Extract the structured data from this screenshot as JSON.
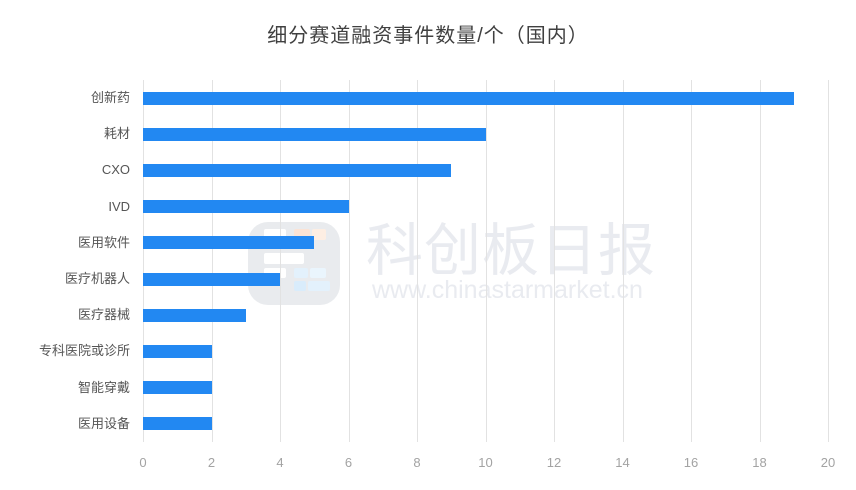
{
  "title": "细分赛道融资事件数量/个（国内）",
  "watermark": {
    "brand": "科创板日报",
    "url": "www.chinastarmarket.cn",
    "color": "#e9ebf0"
  },
  "chart_data": {
    "type": "bar",
    "orientation": "horizontal",
    "title": "细分赛道融资事件数量/个（国内）",
    "categories": [
      "创新药",
      "耗材",
      "CXO",
      "IVD",
      "医用软件",
      "医疗机器人",
      "医疗器械",
      "专科医院或诊所",
      "智能穿戴",
      "医用设备"
    ],
    "values": [
      19,
      10,
      9,
      6,
      5,
      4,
      3,
      2,
      2,
      2
    ],
    "xlabel": "",
    "ylabel": "",
    "xlim": [
      0,
      20
    ],
    "xticks": [
      0,
      2,
      4,
      6,
      8,
      10,
      12,
      14,
      16,
      18,
      20
    ],
    "grid": true,
    "legend": false,
    "bar_color": "#2288F2",
    "gridline_color": "#e2e2e2",
    "tick_label_color": "#a3a3a3",
    "category_label_color": "#555555",
    "title_color": "#404040"
  }
}
